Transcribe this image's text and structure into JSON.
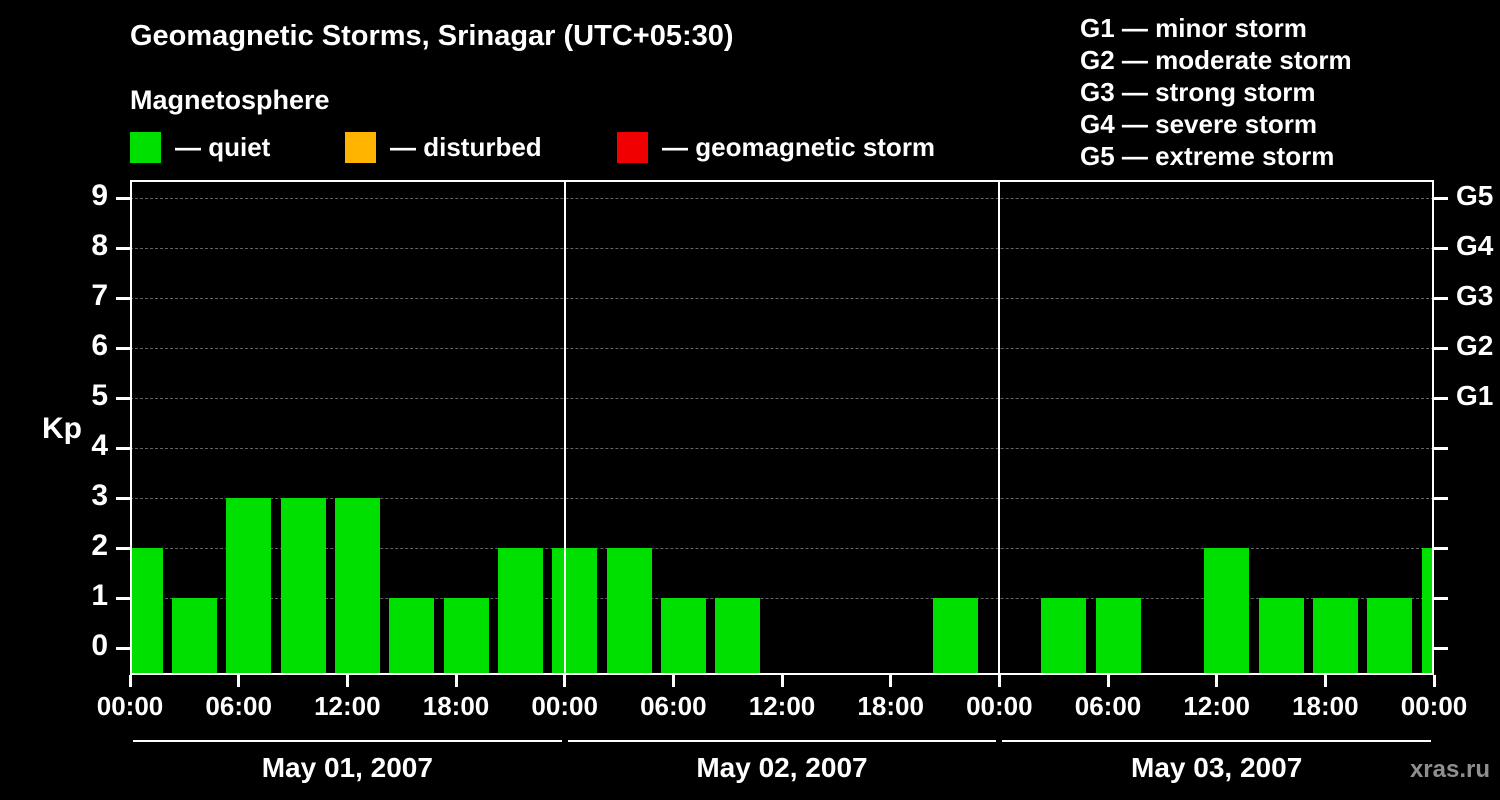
{
  "header": {
    "title": "Geomagnetic Storms, Srinagar (UTC+05:30)",
    "legend_title": "Magnetosphere",
    "legend": [
      {
        "name": "quiet",
        "label": "— quiet",
        "color": "#00e000"
      },
      {
        "name": "disturbed",
        "label": "— disturbed",
        "color": "#ffb400"
      },
      {
        "name": "storm",
        "label": "— geomagnetic storm",
        "color": "#f00000"
      }
    ],
    "g_legend": [
      "G1 — minor storm",
      "G2 — moderate storm",
      "G3 — strong storm",
      "G4 — severe storm",
      "G5 — extreme storm"
    ]
  },
  "footer": {
    "watermark": "xras.ru"
  },
  "chart_data": {
    "type": "bar",
    "title": "Geomagnetic Storms, Srinagar (UTC+05:30)",
    "ylabel": "Kp",
    "ylim": [
      0,
      9.5
    ],
    "yticks": [
      0,
      1,
      2,
      3,
      4,
      5,
      6,
      7,
      8,
      9
    ],
    "grid": true,
    "legend_position": "top",
    "interval_hours": 3,
    "right_axis": [
      {
        "kp": 5,
        "label": "G1"
      },
      {
        "kp": 6,
        "label": "G2"
      },
      {
        "kp": 7,
        "label": "G3"
      },
      {
        "kp": 8,
        "label": "G4"
      },
      {
        "kp": 9,
        "label": "G5"
      }
    ],
    "x_tick_labels": [
      "00:00",
      "06:00",
      "12:00",
      "18:00",
      "00:00",
      "06:00",
      "12:00",
      "18:00",
      "00:00",
      "06:00",
      "12:00",
      "18:00",
      "00:00"
    ],
    "days": [
      {
        "label": "May 01, 2007",
        "values": [
          2,
          1,
          3,
          3,
          3,
          1,
          1,
          2
        ]
      },
      {
        "label": "May 02, 2007",
        "values": [
          2,
          2,
          1,
          1,
          0,
          0,
          0,
          1
        ]
      },
      {
        "label": "May 03, 2007",
        "values": [
          0,
          1,
          1,
          0,
          2,
          1,
          1,
          1
        ]
      }
    ],
    "partial_next_value": 2,
    "bar_color": "#00e000"
  }
}
